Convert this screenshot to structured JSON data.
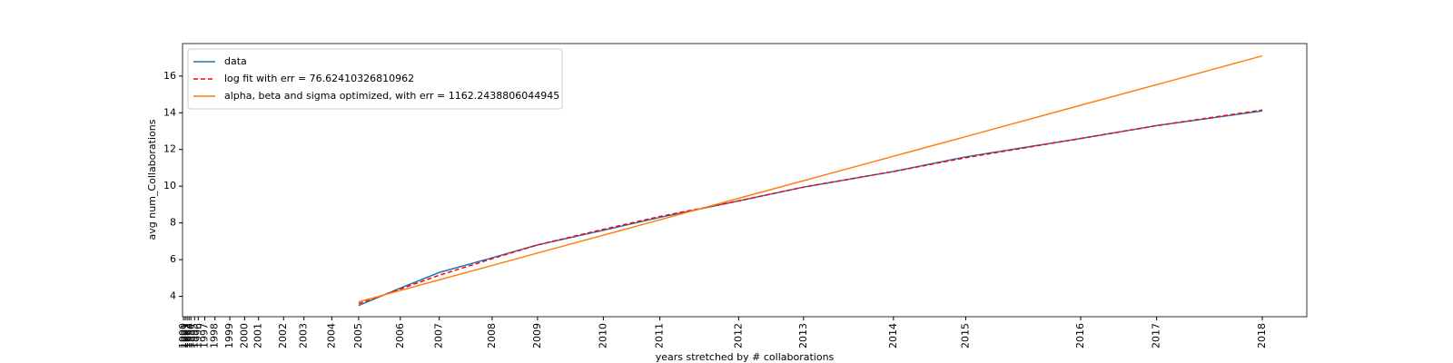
{
  "chart_data": {
    "type": "line",
    "xlabel": "years stretched by # collaborations",
    "ylabel": "avg num_Collaborations",
    "x": [
      190,
      235,
      277,
      334,
      383,
      454,
      515,
      600,
      670,
      767,
      845,
      969,
      1051,
      1165
    ],
    "series": [
      {
        "name": "data",
        "color": "#1f77b4",
        "dash": "solid",
        "values": [
          3.5,
          4.45,
          5.3,
          6.1,
          6.8,
          7.6,
          8.3,
          9.2,
          9.95,
          10.8,
          11.6,
          12.6,
          13.3,
          14.1
        ]
      },
      {
        "name": "log fit with err = 76.62410326810962",
        "color": "#ff0000",
        "dash": "dashed",
        "values": [
          3.6,
          4.4,
          5.15,
          6.05,
          6.8,
          7.65,
          8.35,
          9.2,
          9.95,
          10.8,
          11.55,
          12.6,
          13.3,
          14.15
        ]
      },
      {
        "name": "alpha, beta and sigma optimized, with err = 1162.2438806044945",
        "color": "#ff7f0e",
        "dash": "solid",
        "values": [
          3.7,
          4.32,
          4.9,
          5.68,
          6.36,
          7.33,
          8.17,
          9.34,
          10.3,
          11.63,
          12.7,
          14.41,
          15.53,
          17.1
        ]
      }
    ],
    "xlim": [
      0,
      1213
    ],
    "xticks": [
      {
        "value": 1,
        "label": "1990"
      },
      {
        "value": 3,
        "label": "1991"
      },
      {
        "value": 5,
        "label": "1992"
      },
      {
        "value": 7,
        "label": "1993"
      },
      {
        "value": 9,
        "label": "1994"
      },
      {
        "value": 13,
        "label": "1995"
      },
      {
        "value": 17,
        "label": "1996"
      },
      {
        "value": 24,
        "label": "1997"
      },
      {
        "value": 35,
        "label": "1998"
      },
      {
        "value": 51,
        "label": "1999"
      },
      {
        "value": 67,
        "label": "2000"
      },
      {
        "value": 82,
        "label": "2001"
      },
      {
        "value": 109,
        "label": "2002"
      },
      {
        "value": 131,
        "label": "2003"
      },
      {
        "value": 161,
        "label": "2004"
      },
      {
        "value": 190,
        "label": "2005"
      },
      {
        "value": 235,
        "label": "2006"
      },
      {
        "value": 277,
        "label": "2007"
      },
      {
        "value": 334,
        "label": "2008"
      },
      {
        "value": 383,
        "label": "2009"
      },
      {
        "value": 454,
        "label": "2010"
      },
      {
        "value": 515,
        "label": "2011"
      },
      {
        "value": 600,
        "label": "2012"
      },
      {
        "value": 670,
        "label": "2013"
      },
      {
        "value": 767,
        "label": "2014"
      },
      {
        "value": 845,
        "label": "2015"
      },
      {
        "value": 969,
        "label": "2016"
      },
      {
        "value": 1051,
        "label": "2017"
      },
      {
        "value": 1165,
        "label": "2018"
      }
    ],
    "ylim": [
      2.89,
      17.77
    ],
    "yticks": [
      4,
      6,
      8,
      10,
      12,
      14,
      16
    ],
    "legend": "upper-left"
  }
}
